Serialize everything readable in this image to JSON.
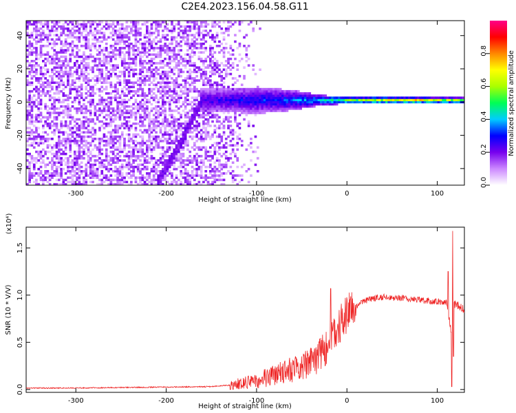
{
  "title": "C2E4.2023.156.04.58.G11",
  "chart_data": [
    {
      "type": "heatmap",
      "xlabel": "Height of straight line (km)",
      "ylabel": "Frequency (Hz)",
      "xlim": [
        -355,
        130
      ],
      "ylim": [
        -50,
        49
      ],
      "xticks": [
        -300,
        -200,
        -100,
        0,
        100
      ],
      "yticks": [
        -40,
        -20,
        0,
        20,
        40
      ],
      "colorbar": {
        "label": "Normalized spectral amplitude",
        "range": [
          0.0,
          1.0
        ],
        "ticks": [
          0.0,
          0.2,
          0.4,
          0.6,
          0.8
        ],
        "tick_labels": [
          "0.0",
          "0.2",
          "0.4",
          "0.6",
          "0.8"
        ],
        "colormap": [
          "#ffffff",
          "#cc88ff",
          "#7700ee",
          "#0000ff",
          "#00ccff",
          "#00ff55",
          "#aaff00",
          "#ffff00",
          "#ff8800",
          "#ff0000",
          "#ff0088"
        ]
      },
      "features": {
        "noise_region_x": [
          -355,
          -120
        ],
        "diagonal_track": [
          [
            -210,
            -48
          ],
          [
            -185,
            -25
          ],
          [
            -170,
            -8
          ],
          [
            -160,
            2
          ]
        ],
        "signal_band": [
          {
            "x": -150,
            "half_width_hz": 7,
            "amplitude": 0.3
          },
          {
            "x": -100,
            "half_width_hz": 8,
            "amplitude": 0.35
          },
          {
            "x": -60,
            "half_width_hz": 6,
            "amplitude": 0.4
          },
          {
            "x": -30,
            "half_width_hz": 3,
            "amplitude": 0.5
          },
          {
            "x": 0,
            "half_width_hz": 2,
            "amplitude": 0.65
          },
          {
            "x": 70,
            "half_width_hz": 1.5,
            "amplitude": 0.9
          },
          {
            "x": 130,
            "half_width_hz": 1.5,
            "amplitude": 0.7
          }
        ]
      }
    },
    {
      "type": "line",
      "xlabel": "Height of straight line (km)",
      "ylabel": "SNR (10 * V/V)",
      "multiplier": "(x10⁴)",
      "xlim": [
        -355,
        130
      ],
      "ylim": [
        -0.03,
        1.72
      ],
      "xticks": [
        -300,
        -200,
        -100,
        0,
        100
      ],
      "yticks": [
        0.0,
        0.5,
        1.0,
        1.5
      ],
      "ytick_labels": [
        "0.0",
        "0.5",
        "1.0",
        "1.5"
      ],
      "series": [
        {
          "color": "#ee2222",
          "envelope": [
            [
              -355,
              0.01
            ],
            [
              -300,
              0.01
            ],
            [
              -250,
              0.015
            ],
            [
              -200,
              0.02
            ],
            [
              -150,
              0.025
            ],
            [
              -130,
              0.04
            ],
            [
              -110,
              0.08
            ],
            [
              -90,
              0.12
            ],
            [
              -70,
              0.18
            ],
            [
              -50,
              0.25
            ],
            [
              -35,
              0.32
            ],
            [
              -25,
              0.42
            ],
            [
              -15,
              0.55
            ],
            [
              -5,
              0.72
            ],
            [
              5,
              0.85
            ],
            [
              20,
              0.94
            ],
            [
              35,
              0.98
            ],
            [
              60,
              0.97
            ],
            [
              90,
              0.94
            ],
            [
              110,
              0.92
            ],
            [
              116,
              0.6
            ],
            [
              118,
              0.9
            ],
            [
              130,
              0.86
            ]
          ],
          "spikes": [
            [
              -18,
              1.07
            ],
            [
              112,
              1.25
            ],
            [
              116,
              0.03
            ],
            [
              117,
              1.68
            ],
            [
              118,
              0.35
            ]
          ]
        }
      ]
    }
  ]
}
